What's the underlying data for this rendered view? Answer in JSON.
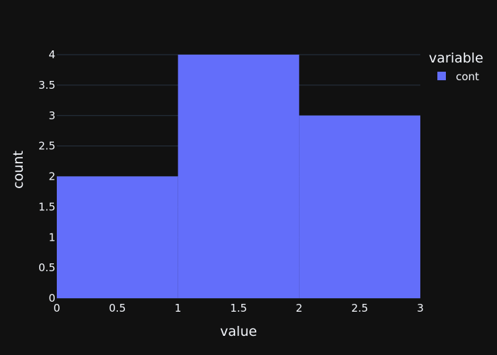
{
  "colors": {
    "background": "#111111",
    "grid": "#283442",
    "text": "#f2f5fa",
    "bar": "#636efa"
  },
  "chart_data": {
    "type": "bar",
    "title": "",
    "xlabel": "value",
    "ylabel": "count",
    "xlim": [
      0,
      3
    ],
    "ylim": [
      0,
      4
    ],
    "x_ticks": [
      "0",
      "0.5",
      "1",
      "1.5",
      "2",
      "2.5",
      "3"
    ],
    "y_ticks": [
      "0",
      "0.5",
      "1",
      "1.5",
      "2",
      "2.5",
      "3",
      "3.5",
      "4"
    ],
    "grid": true,
    "legend": {
      "title": "variable",
      "placement": "top-right"
    },
    "series": [
      {
        "name": "cont",
        "bins": [
          {
            "x0": 0,
            "x1": 1,
            "count": 2
          },
          {
            "x0": 1,
            "x1": 2,
            "count": 4
          },
          {
            "x0": 2,
            "x1": 3,
            "count": 3
          }
        ]
      }
    ]
  }
}
